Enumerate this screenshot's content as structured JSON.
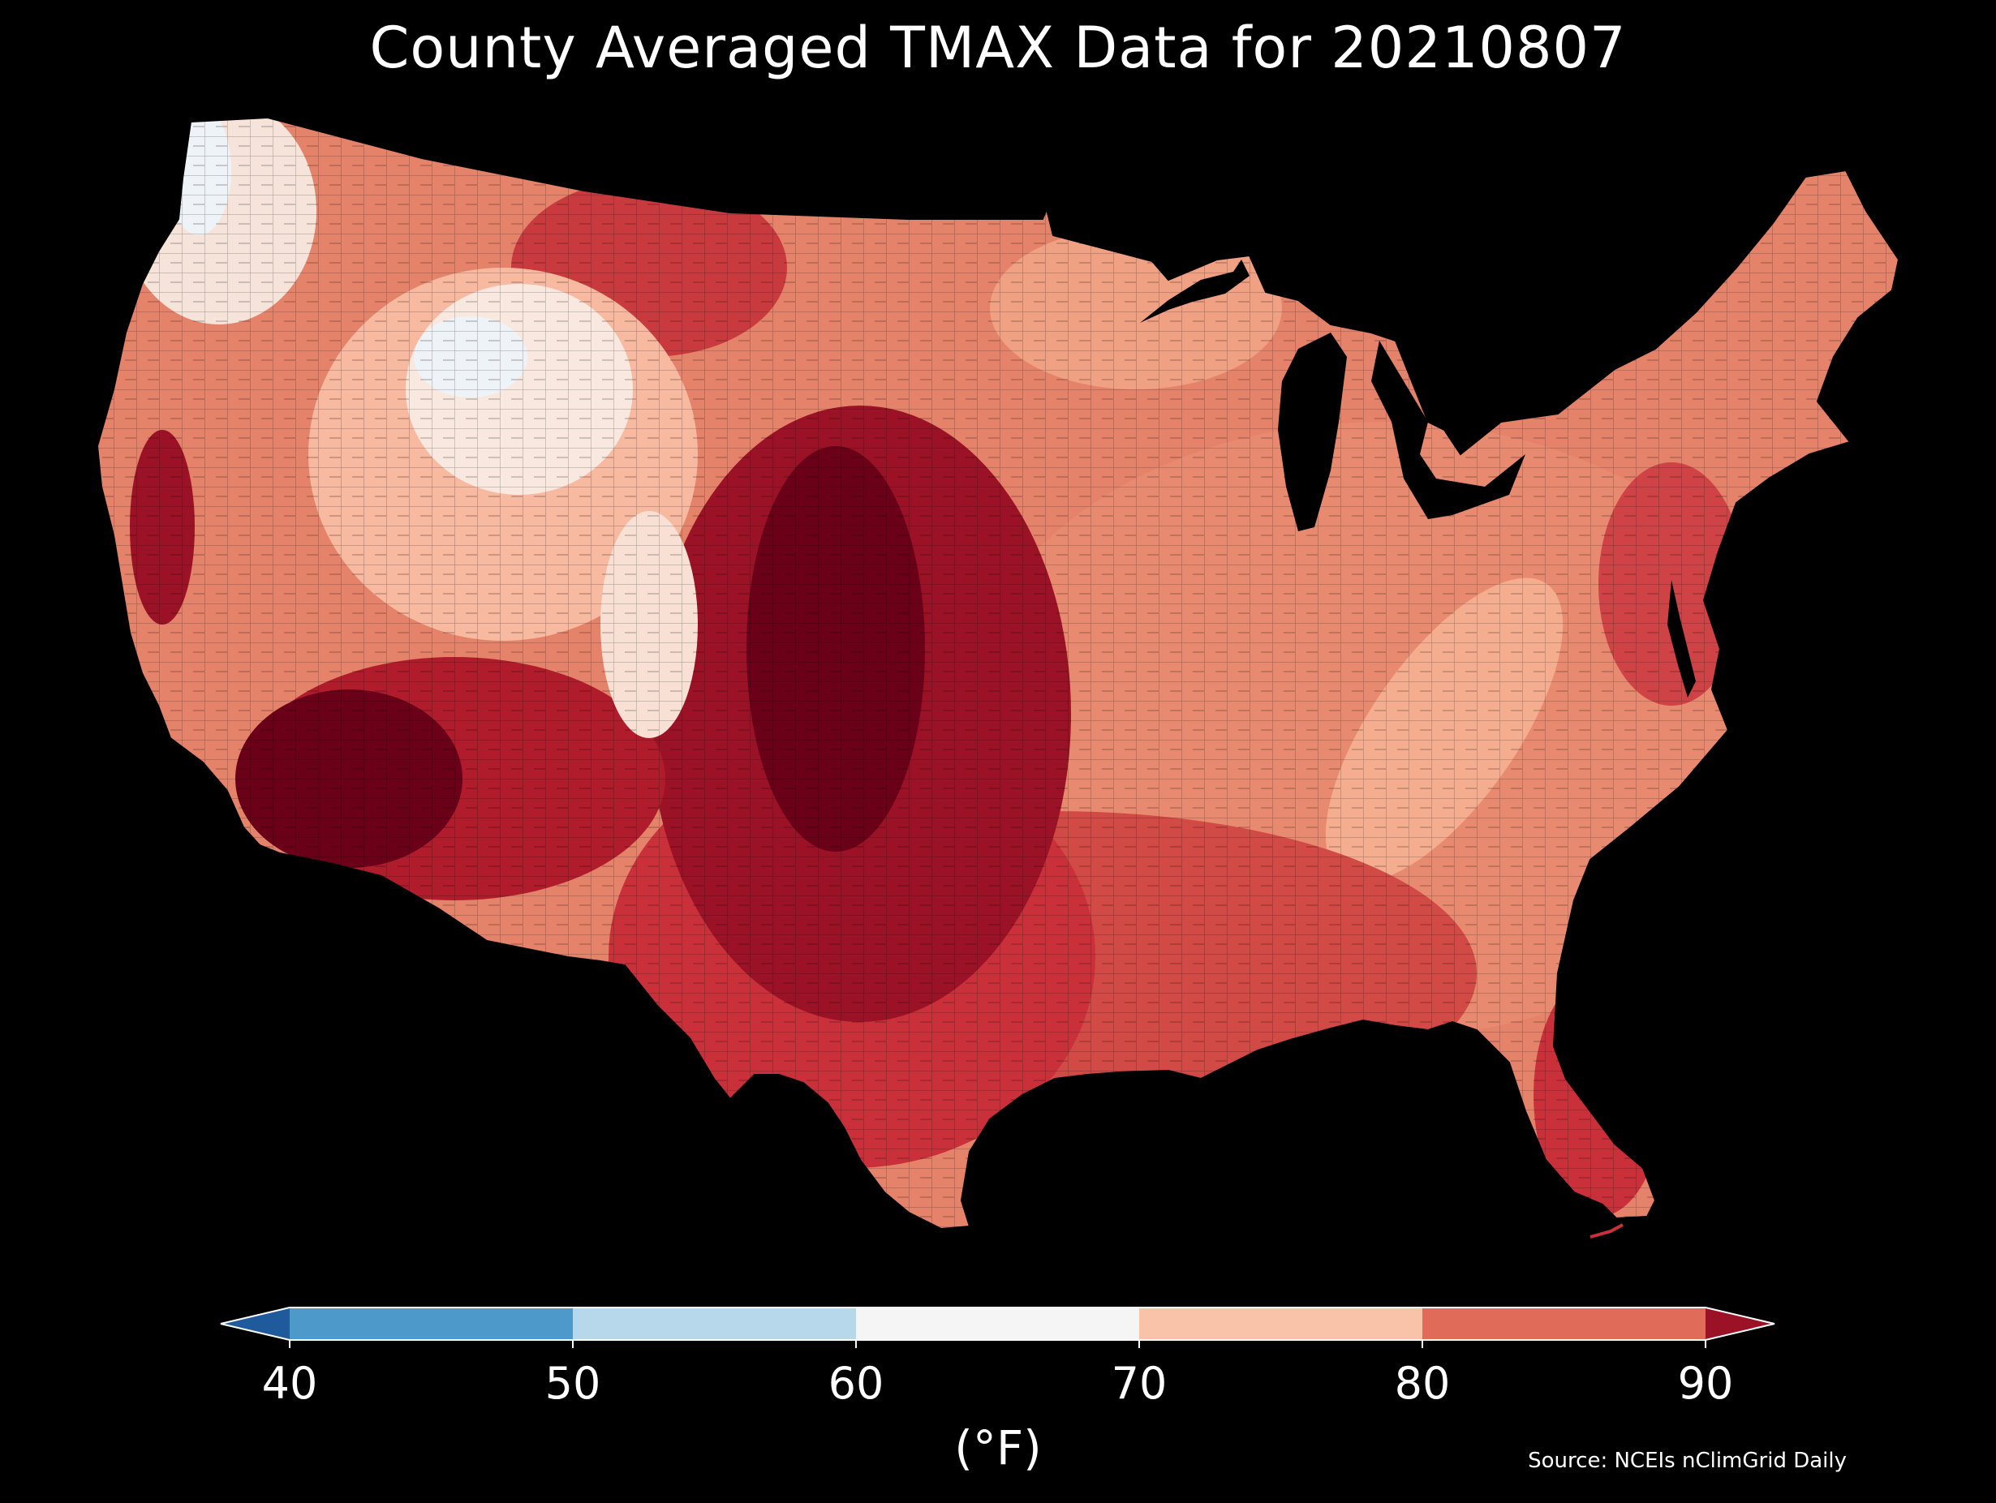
{
  "title": "County Averaged TMAX Data for 20210807",
  "source": "Source: NCEIs nClimGrid Daily",
  "colorbar": {
    "units": "(°F)",
    "ticks": [
      "40",
      "50",
      "60",
      "70",
      "80",
      "90"
    ],
    "bins": [
      {
        "range": "<40",
        "color": "#1f5a9c"
      },
      {
        "range": "40-50",
        "color": "#4d99c9"
      },
      {
        "range": "50-60",
        "color": "#b7d8ea"
      },
      {
        "range": "60-70",
        "color": "#f5f5f5"
      },
      {
        "range": "70-80",
        "color": "#f8c3a8"
      },
      {
        "range": "80-90",
        "color": "#e06b58"
      },
      {
        "range": ">90",
        "color": "#9b1226"
      }
    ]
  },
  "map": {
    "region": "Contiguous United States (county level)",
    "variable": "TMAX",
    "date": "20210807",
    "background_color": "#000000",
    "palette": {
      "cold": "#eef3f8",
      "cool": "#f8e8e0",
      "mild": "#f7b99f",
      "warm": "#e4826a",
      "hot": "#c9303a",
      "very_hot": "#9b1226",
      "extreme": "#6b0019"
    }
  }
}
